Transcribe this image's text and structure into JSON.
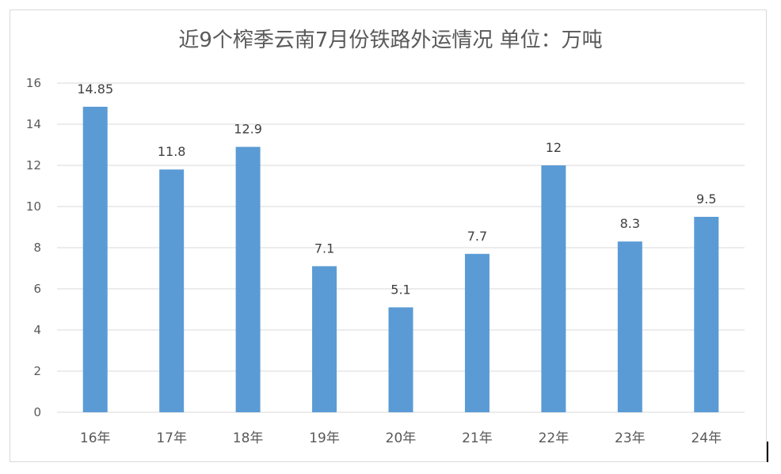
{
  "chart_data": {
    "type": "bar",
    "title": "近9个榨季云南7月份铁路外运情况  单位：万吨",
    "categories": [
      "16年",
      "17年",
      "18年",
      "19年",
      "20年",
      "21年",
      "22年",
      "23年",
      "24年"
    ],
    "values": [
      14.85,
      11.8,
      12.9,
      7.1,
      5.1,
      7.7,
      12,
      8.3,
      9.5
    ],
    "value_labels": [
      "14.85",
      "11.8",
      "12.9",
      "7.1",
      "5.1",
      "7.7",
      "12",
      "8.3",
      "9.5"
    ],
    "ylim": [
      0,
      16
    ],
    "yticks": [
      0,
      2,
      4,
      6,
      8,
      10,
      12,
      14,
      16
    ],
    "grid": true,
    "bar_color": "#5b9bd5",
    "grid_color": "#d9d9d9"
  }
}
